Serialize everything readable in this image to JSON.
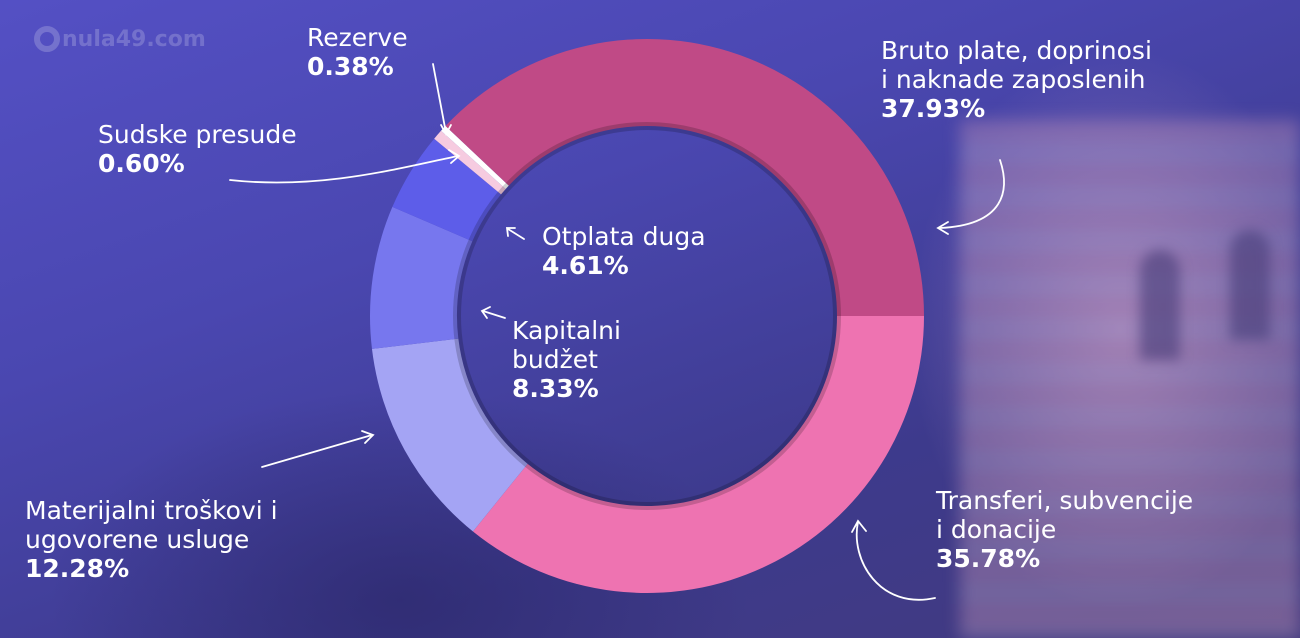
{
  "logo": {
    "text": "nula49.com"
  },
  "chart_data": {
    "type": "pie",
    "donut": true,
    "start": "3 o'clock, clockwise",
    "slices": [
      {
        "name": "Transferi, subvencije i donacije",
        "line1": "Transferi, subvencije",
        "line2": "i donacije",
        "value": 35.78,
        "label": "35.78%",
        "color": "#ee73b1"
      },
      {
        "name": "Materijalni troškovi i ugovorene usluge",
        "line1": "Materijalni troškovi i",
        "line2": "ugovorene usluge",
        "value": 12.28,
        "label": "12.28%",
        "color": "#a4a4f4"
      },
      {
        "name": "Kapitalni budžet",
        "line1": "Kapitalni",
        "line2": "budžet",
        "value": 8.33,
        "label": "8.33%",
        "color": "#7777ee"
      },
      {
        "name": "Otplata duga",
        "line1": "Otplata duga",
        "line2": "",
        "value": 4.61,
        "label": "4.61%",
        "color": "#5d5de9"
      },
      {
        "name": "Sudske presude",
        "line1": "Sudske presude",
        "line2": "",
        "value": 0.6,
        "label": "0.60%",
        "color": "#f6cbe0"
      },
      {
        "name": "Rezerve",
        "line1": "Rezerve",
        "line2": "",
        "value": 0.38,
        "label": "0.38%",
        "color": "#ffffff"
      },
      {
        "name": "Bruto plate, doprinosi i naknade zaposlenih",
        "line1": "Bruto plate, doprinosi",
        "line2": "i naknade zaposlenih",
        "value": 37.93,
        "label": "37.93%",
        "color": "#c04a86"
      }
    ]
  }
}
